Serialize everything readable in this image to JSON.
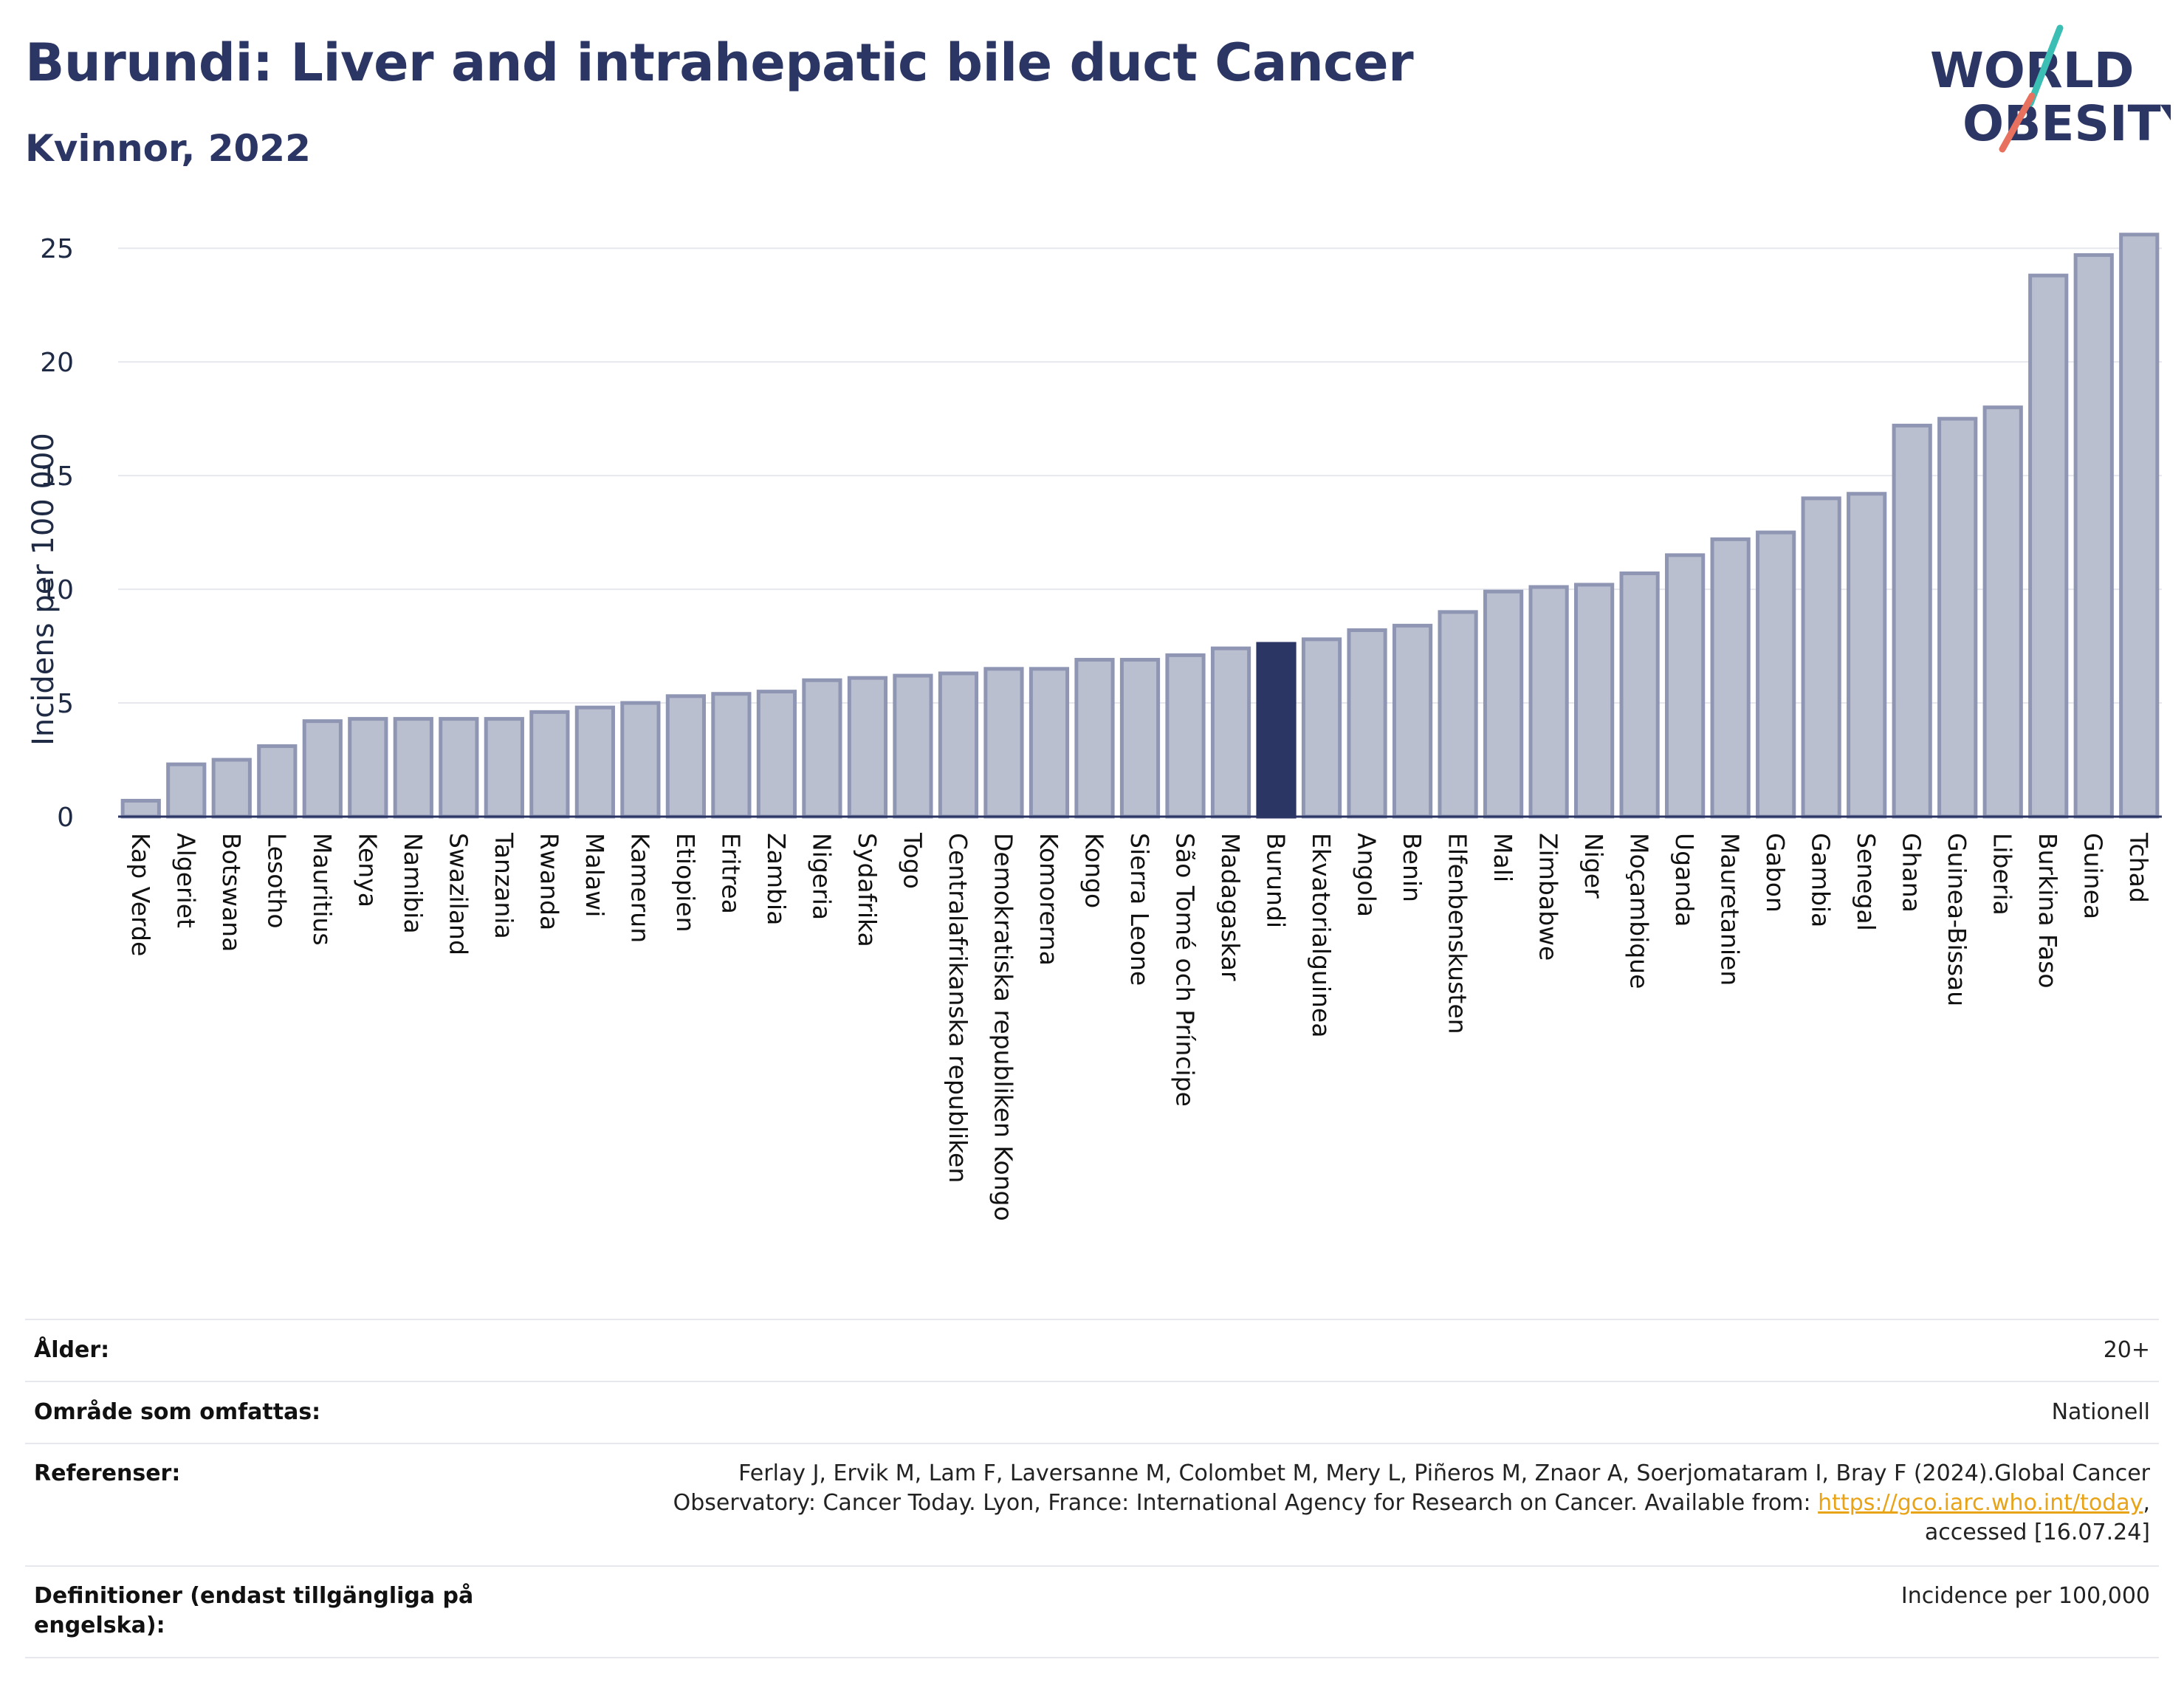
{
  "header": {
    "title": "Burundi: Liver and intrahepatic bile duct Cancer",
    "subtitle": "Kvinnor, 2022"
  },
  "logo": {
    "line1": "WORLD",
    "line2": "OBESITY",
    "colors": {
      "text": "#2b3664",
      "slash_teal": "#3bbfb5",
      "slash_coral": "#e8705f"
    }
  },
  "colors": {
    "bar_fill": "#babfcf",
    "bar_stroke": "#8f96b3",
    "highlight": "#2b3664",
    "grid": "#e6e8ee",
    "axis": "#2b3664"
  },
  "chart_data": {
    "type": "bar",
    "title": "",
    "ylabel": "Incidens per 100 000",
    "xlabel": "",
    "ylim": [
      0,
      26.5
    ],
    "yticks": [
      0,
      5,
      10,
      15,
      20,
      25
    ],
    "grid": true,
    "highlight": "Burundi",
    "categories": [
      "Kap Verde",
      "Algeriet",
      "Botswana",
      "Lesotho",
      "Mauritius",
      "Kenya",
      "Namibia",
      "Swaziland",
      "Tanzania",
      "Rwanda",
      "Malawi",
      "Kamerun",
      "Etiopien",
      "Eritrea",
      "Zambia",
      "Nigeria",
      "Sydafrika",
      "Togo",
      "Centralafrikanska republiken",
      "Demokratiska republiken Kongo",
      "Komorerna",
      "Kongo",
      "Sierra Leone",
      "São Tomé och Príncipe",
      "Madagaskar",
      "Burundi",
      "Ekvatorialguinea",
      "Angola",
      "Benin",
      "Elfenbenskusten",
      "Mali",
      "Zimbabwe",
      "Niger",
      "Moçambique",
      "Uganda",
      "Mauretanien",
      "Gabon",
      "Gambia",
      "Senegal",
      "Ghana",
      "Guinea-Bissau",
      "Liberia",
      "Burkina Faso",
      "Guinea",
      "Tchad"
    ],
    "values": [
      0.7,
      2.3,
      2.5,
      3.1,
      4.2,
      4.3,
      4.3,
      4.3,
      4.3,
      4.6,
      4.8,
      5.0,
      5.3,
      5.4,
      5.5,
      6.0,
      6.1,
      6.2,
      6.3,
      6.5,
      6.5,
      6.9,
      6.9,
      7.1,
      7.4,
      7.6,
      7.8,
      8.2,
      8.4,
      9.0,
      9.9,
      10.1,
      10.2,
      10.7,
      11.5,
      12.2,
      12.5,
      14.0,
      14.2,
      17.2,
      17.5,
      18.0,
      23.8,
      24.7,
      25.6
    ]
  },
  "metadata": {
    "age_label": "Ålder:",
    "age_value": "20+",
    "area_label": "Område som omfattas:",
    "area_value": "Nationell",
    "ref_label": "Referenser:",
    "ref_text_1": "Ferlay J, Ervik M, Lam F, Laversanne M, Colombet M, Mery L, Piñeros M, Znaor A, Soerjomataram I, Bray F (2024).Global Cancer",
    "ref_text_2": "Observatory: Cancer Today. Lyon, France: International Agency for Research on Cancer. Available from: ",
    "ref_link": "https://gco.iarc.who.int/today",
    "ref_text_3": ",",
    "ref_text_4": "accessed [16.07.24]",
    "def_label": "Definitioner (endast tillgängliga på engelska):",
    "def_value": "Incidence per 100,000"
  }
}
